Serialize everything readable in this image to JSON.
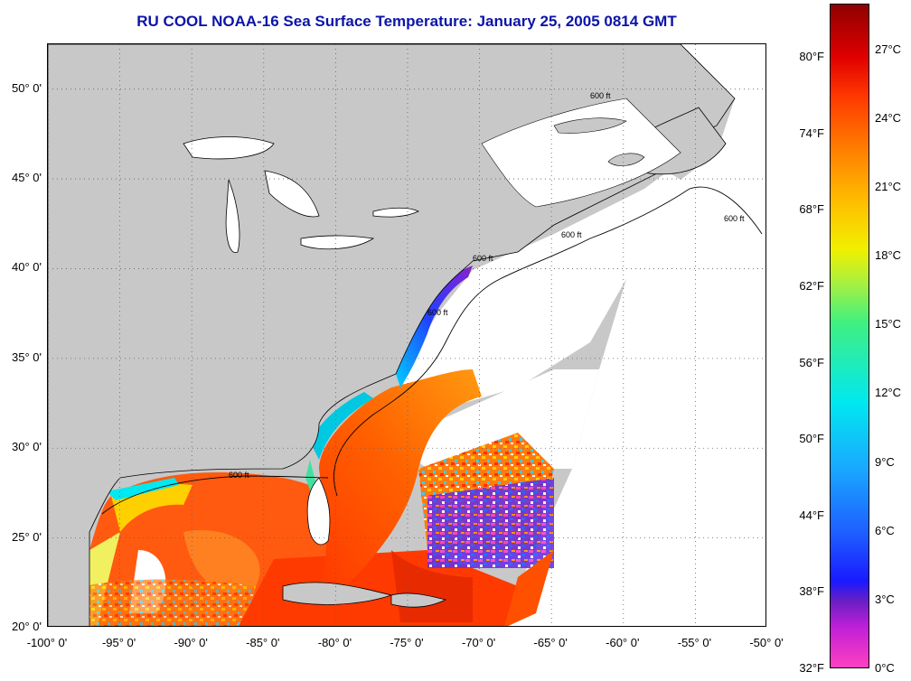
{
  "title": "RU COOL  NOAA-16  Sea Surface Temperature:  January 25, 2005 0814 GMT",
  "map": {
    "extent": {
      "lon_min": -100,
      "lon_max": -50,
      "lat_min": 20,
      "lat_max": 52.5
    },
    "lat_ticks": [
      {
        "value": 50,
        "label": "50° 0'"
      },
      {
        "value": 45,
        "label": "45° 0'"
      },
      {
        "value": 40,
        "label": "40° 0'"
      },
      {
        "value": 35,
        "label": "35° 0'"
      },
      {
        "value": 30,
        "label": "30° 0'"
      },
      {
        "value": 25,
        "label": "25° 0'"
      },
      {
        "value": 20,
        "label": "20° 0'"
      }
    ],
    "lon_ticks": [
      {
        "value": -100,
        "label": "-100° 0'"
      },
      {
        "value": -95,
        "label": "-95° 0'"
      },
      {
        "value": -90,
        "label": "-90° 0'"
      },
      {
        "value": -85,
        "label": "-85° 0'"
      },
      {
        "value": -80,
        "label": "-80° 0'"
      },
      {
        "value": -75,
        "label": "-75° 0'"
      },
      {
        "value": -70,
        "label": "-70° 0'"
      },
      {
        "value": -65,
        "label": "-65° 0'"
      },
      {
        "value": -60,
        "label": "-60° 0'"
      },
      {
        "value": -55,
        "label": "-55° 0'"
      },
      {
        "value": -50,
        "label": "-50° 0'"
      }
    ],
    "isobath_label": "600 ft",
    "colors": {
      "land": "#c8c8c8",
      "no_data": "#ffffff",
      "grid": "#606060"
    }
  },
  "colorbar": {
    "celsius": [
      "0°C",
      "3°C",
      "6°C",
      "9°C",
      "12°C",
      "15°C",
      "18°C",
      "21°C",
      "24°C",
      "27°C"
    ],
    "fahrenheit": [
      "32°F",
      "38°F",
      "44°F",
      "50°F",
      "56°F",
      "62°F",
      "68°F",
      "74°F",
      "80°F"
    ],
    "range_c": [
      0,
      29
    ]
  }
}
